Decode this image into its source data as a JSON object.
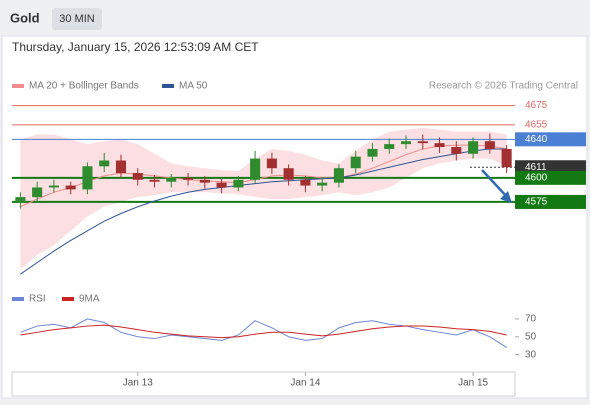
{
  "header": {
    "symbol": "Gold",
    "timeframe": "30 MIN",
    "timestamp": "Thursday, January 15, 2026 12:53:09 AM CET"
  },
  "chart_data": [
    {
      "type": "candlestick",
      "annotation": "Research © 2026 Trading Central",
      "categories": [
        null,
        null,
        null,
        null,
        null,
        null,
        null,
        "Jan 13",
        null,
        null,
        null,
        null,
        null,
        null,
        null,
        null,
        null,
        "Jan 14",
        null,
        null,
        null,
        null,
        null,
        null,
        null,
        null,
        null,
        "Jan 15",
        null,
        null
      ],
      "open": [
        4575,
        4580,
        4590,
        4592,
        4588,
        4612,
        4618,
        4605,
        4598,
        4596,
        4600,
        4598,
        4595,
        4590,
        4598,
        4620,
        4610,
        4598,
        4592,
        4595,
        4610,
        4622,
        4630,
        4635,
        4638,
        4636,
        4632,
        4625,
        4638,
        4630
      ],
      "high": [
        4585,
        4596,
        4598,
        4596,
        4616,
        4626,
        4624,
        4610,
        4603,
        4604,
        4605,
        4602,
        4599,
        4602,
        4628,
        4626,
        4614,
        4602,
        4600,
        4614,
        4628,
        4636,
        4641,
        4644,
        4645,
        4642,
        4638,
        4642,
        4646,
        4634
      ],
      "low": [
        4568,
        4575,
        4585,
        4583,
        4583,
        4606,
        4600,
        4592,
        4590,
        4590,
        4592,
        4589,
        4584,
        4586,
        4594,
        4604,
        4592,
        4585,
        4586,
        4590,
        4605,
        4617,
        4625,
        4630,
        4630,
        4626,
        4618,
        4620,
        4625,
        4605
      ],
      "close": [
        4580,
        4590,
        4592,
        4588,
        4612,
        4618,
        4605,
        4598,
        4596,
        4600,
        4598,
        4595,
        4590,
        4598,
        4620,
        4610,
        4598,
        4592,
        4595,
        4610,
        4622,
        4630,
        4635,
        4638,
        4636,
        4632,
        4625,
        4638,
        4630,
        4611
      ],
      "up_color": "#2e8b2e",
      "down_color": "#a33030",
      "series": [
        {
          "name": "MA 20 + Bollinger Bands",
          "color": "#f28b8b",
          "values": [
            4570,
            4578,
            4585,
            4590,
            4596,
            4602,
            4605,
            4604,
            4602,
            4600,
            4598,
            4597,
            4596,
            4595,
            4598,
            4602,
            4603,
            4602,
            4600,
            4600,
            4604,
            4610,
            4617,
            4624,
            4630,
            4633,
            4634,
            4634,
            4633,
            4630
          ]
        },
        {
          "name": "MA 50",
          "color": "#2f5597",
          "values": [
            4500,
            4512,
            4524,
            4535,
            4545,
            4555,
            4563,
            4570,
            4576,
            4581,
            4585,
            4588,
            4590,
            4592,
            4594,
            4596,
            4597,
            4598,
            4599,
            4600,
            4603,
            4607,
            4611,
            4615,
            4619,
            4622,
            4625,
            4628,
            4630,
            4630
          ]
        }
      ],
      "bands": {
        "color": "#f9c9cf",
        "upper": [
          4640,
          4645,
          4645,
          4640,
          4635,
          4638,
          4640,
          4635,
          4625,
          4615,
          4612,
          4610,
          4608,
          4607,
          4620,
          4630,
          4628,
          4624,
          4618,
          4615,
          4628,
          4640,
          4648,
          4650,
          4652,
          4650,
          4648,
          4648,
          4648,
          4645
        ],
        "lower": [
          4505,
          4520,
          4530,
          4545,
          4560,
          4570,
          4575,
          4580,
          4582,
          4585,
          4585,
          4585,
          4584,
          4583,
          4580,
          4578,
          4578,
          4580,
          4582,
          4585,
          4582,
          4585,
          4590,
          4600,
          4610,
          4615,
          4618,
          4620,
          4620,
          4612
        ]
      },
      "levels": [
        {
          "value": 4675,
          "color": "#e06666",
          "style": "thin",
          "boxed": false
        },
        {
          "value": 4655,
          "color": "#e06666",
          "style": "thin",
          "boxed": false
        },
        {
          "value": 4640,
          "color": "#4a7fd4",
          "style": "thin",
          "boxed": true
        },
        {
          "value": 4611,
          "color": "#333333",
          "style": "dotted",
          "boxed": true
        },
        {
          "value": 4600,
          "color": "#137a13",
          "style": "thick",
          "boxed": true
        },
        {
          "value": 4575,
          "color": "#137a13",
          "style": "thick",
          "boxed": true
        }
      ],
      "ylim": [
        4495,
        4686
      ]
    },
    {
      "type": "line",
      "ylim": [
        15,
        80
      ],
      "yticks": [
        30,
        50,
        70
      ],
      "series": [
        {
          "name": "RSI",
          "color": "#6b86d6",
          "values": [
            55,
            62,
            64,
            60,
            70,
            66,
            55,
            50,
            48,
            52,
            50,
            48,
            46,
            52,
            68,
            60,
            50,
            46,
            48,
            60,
            66,
            68,
            64,
            62,
            58,
            55,
            52,
            58,
            50,
            38
          ]
        },
        {
          "name": "9MA",
          "color": "#cc2222",
          "values": [
            52,
            55,
            58,
            60,
            62,
            63,
            61,
            58,
            55,
            53,
            51,
            50,
            49,
            50,
            53,
            55,
            55,
            53,
            51,
            53,
            56,
            59,
            61,
            62,
            62,
            61,
            59,
            58,
            56,
            52
          ]
        }
      ]
    }
  ]
}
